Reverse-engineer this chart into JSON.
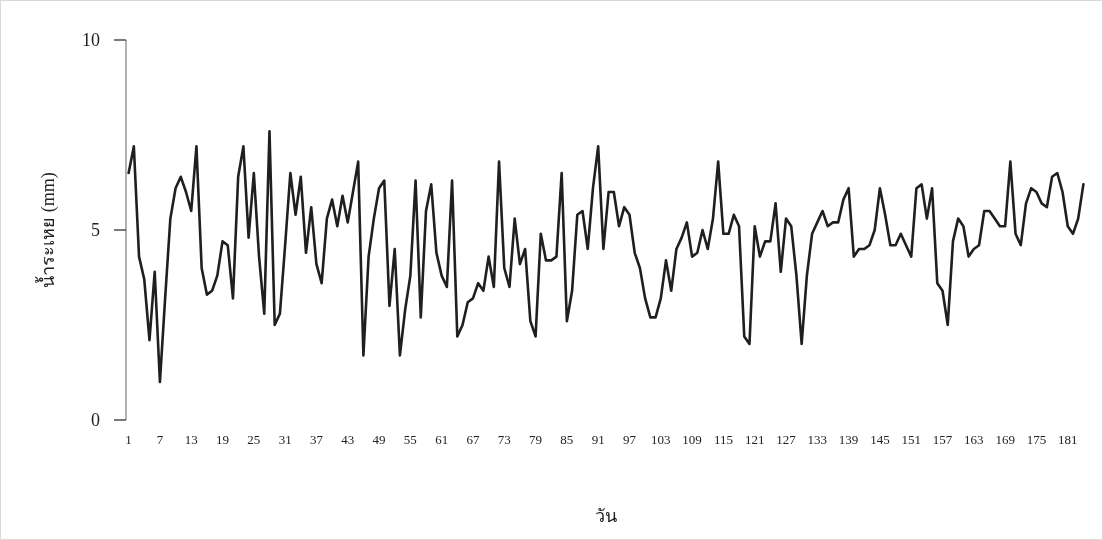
{
  "chart_data": {
    "type": "line",
    "xlabel": "วัน",
    "ylabel": "น้ำระเหย (mm)",
    "color": "#1f1f1f",
    "ylim": [
      0,
      10
    ],
    "yticks": [
      0,
      5,
      10
    ],
    "categories": [
      "1",
      null,
      null,
      null,
      null,
      null,
      "7",
      null,
      null,
      null,
      null,
      null,
      "13",
      null,
      null,
      null,
      null,
      null,
      "19",
      null,
      null,
      null,
      null,
      null,
      "25",
      null,
      null,
      null,
      null,
      null,
      "31",
      null,
      null,
      null,
      null,
      null,
      "37",
      null,
      null,
      null,
      null,
      null,
      "43",
      null,
      null,
      null,
      null,
      null,
      "49",
      null,
      null,
      null,
      null,
      null,
      "55",
      null,
      null,
      null,
      null,
      null,
      "61",
      null,
      null,
      null,
      null,
      null,
      "67",
      null,
      null,
      null,
      null,
      null,
      "73",
      null,
      null,
      null,
      null,
      null,
      "79",
      null,
      null,
      null,
      null,
      null,
      "85",
      null,
      null,
      null,
      null,
      null,
      "91",
      null,
      null,
      null,
      null,
      null,
      "97",
      null,
      null,
      null,
      null,
      null,
      "103",
      null,
      null,
      null,
      null,
      null,
      "109",
      null,
      null,
      null,
      null,
      null,
      "115",
      null,
      null,
      null,
      null,
      null,
      "121",
      null,
      null,
      null,
      null,
      null,
      "127",
      null,
      null,
      null,
      null,
      null,
      "133",
      null,
      null,
      null,
      null,
      null,
      "139",
      null,
      null,
      null,
      null,
      null,
      "145",
      null,
      null,
      null,
      null,
      null,
      "151",
      null,
      null,
      null,
      null,
      null,
      "157",
      null,
      null,
      null,
      null,
      null,
      "163",
      null,
      null,
      null,
      null,
      null,
      "169",
      null,
      null,
      null,
      null,
      null,
      "175",
      null,
      null,
      null,
      null,
      null,
      "181",
      null,
      null,
      null
    ],
    "values": [
      6.5,
      7.2,
      4.3,
      3.7,
      2.1,
      3.9,
      1.0,
      3.2,
      5.3,
      6.1,
      6.4,
      6.0,
      5.5,
      7.2,
      4.0,
      3.3,
      3.4,
      3.8,
      4.7,
      4.6,
      3.2,
      6.4,
      7.2,
      4.8,
      6.5,
      4.3,
      2.8,
      7.6,
      2.5,
      2.8,
      4.6,
      6.5,
      5.4,
      6.4,
      4.4,
      5.6,
      4.1,
      3.6,
      5.3,
      5.8,
      5.1,
      5.9,
      5.2,
      6.0,
      6.8,
      1.7,
      4.3,
      5.3,
      6.1,
      6.3,
      3.0,
      4.5,
      1.7,
      2.9,
      3.8,
      6.3,
      2.7,
      5.5,
      6.2,
      4.4,
      3.8,
      3.5,
      6.3,
      2.2,
      2.5,
      3.1,
      3.2,
      3.6,
      3.4,
      4.3,
      3.5,
      6.8,
      4.0,
      3.5,
      5.3,
      4.1,
      4.5,
      2.6,
      2.2,
      4.9,
      4.2,
      4.2,
      4.3,
      6.5,
      2.6,
      3.4,
      5.4,
      5.5,
      4.5,
      6.1,
      7.2,
      4.5,
      6.0,
      6.0,
      5.1,
      5.6,
      5.4,
      4.4,
      4.0,
      3.2,
      2.7,
      2.7,
      3.2,
      4.2,
      3.4,
      4.5,
      4.8,
      5.2,
      4.3,
      4.4,
      5.0,
      4.5,
      5.3,
      6.8,
      4.9,
      4.9,
      5.4,
      5.1,
      2.2,
      2.0,
      5.1,
      4.3,
      4.7,
      4.7,
      5.7,
      3.9,
      5.3,
      5.1,
      3.8,
      2.0,
      3.8,
      4.9,
      5.2,
      5.5,
      5.1,
      5.2,
      5.2,
      5.8,
      6.1,
      4.3,
      4.5,
      4.5,
      4.6,
      5.0,
      6.1,
      5.4,
      4.6,
      4.6,
      4.9,
      4.6,
      4.3,
      6.1,
      6.2,
      5.3,
      6.1,
      3.6,
      3.4,
      2.5,
      4.7,
      5.3,
      5.1,
      4.3,
      4.5,
      4.6,
      5.5,
      5.5,
      5.3,
      5.1,
      5.1,
      6.8,
      4.9,
      4.6,
      5.7,
      6.1,
      6.0,
      5.7,
      5.6,
      6.4,
      6.5,
      6.0,
      5.1,
      4.9,
      5.3,
      6.2
    ]
  }
}
